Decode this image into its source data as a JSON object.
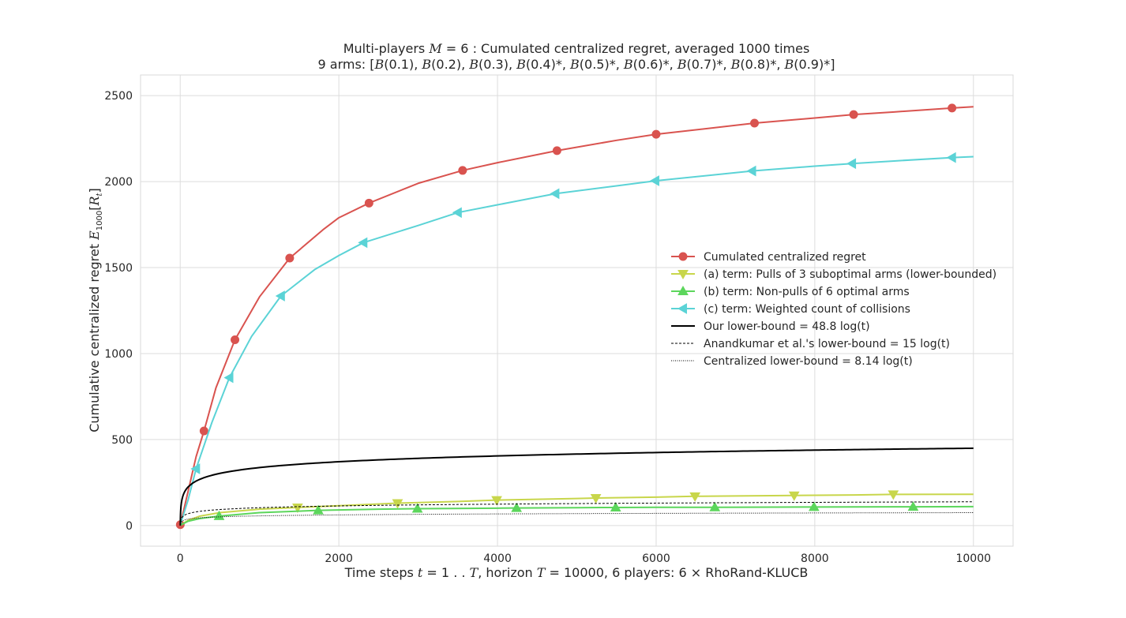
{
  "chart_data": {
    "type": "line",
    "title": "Multi-players M = 6 : Cumulated centralized regret, averaged 1000 times",
    "subtitle": "9 arms: [B(0.1), B(0.2), B(0.3), B(0.4)*, B(0.5)*, B(0.6)*, B(0.7)*, B(0.8)*, B(0.9)*]",
    "xlabel": "Time steps t = 1 . . T, horizon T = 10000, 6 players: 6 × RhoRand-KLUCB",
    "ylabel": "Cumulative centralized regret E1000[Rt]",
    "xlim": [
      -500,
      10500
    ],
    "ylim": [
      -120,
      2620
    ],
    "xticks": [
      0,
      2000,
      4000,
      6000,
      8000,
      10000
    ],
    "xtick_labels": [
      "0",
      "2000",
      "4000",
      "6000",
      "8000",
      "10000"
    ],
    "yticks": [
      0,
      500,
      1000,
      1500,
      2000,
      2500
    ],
    "ytick_labels": [
      "0",
      "500",
      "1000",
      "1500",
      "2000",
      "2500"
    ],
    "grid": true,
    "legend_position": "center-right",
    "series": [
      {
        "name": "Cumulated centralized regret",
        "color": "#d9534f",
        "style": "solid",
        "marker": "circle",
        "points": [
          [
            1,
            5
          ],
          [
            100,
            200
          ],
          [
            200,
            400
          ],
          [
            300,
            550
          ],
          [
            450,
            800
          ],
          [
            690,
            1080
          ],
          [
            1000,
            1330
          ],
          [
            1380,
            1555
          ],
          [
            1800,
            1720
          ],
          [
            2000,
            1790
          ],
          [
            2380,
            1875
          ],
          [
            3000,
            1990
          ],
          [
            3560,
            2065
          ],
          [
            4000,
            2110
          ],
          [
            4750,
            2180
          ],
          [
            5500,
            2240
          ],
          [
            6000,
            2275
          ],
          [
            7240,
            2340
          ],
          [
            8000,
            2370
          ],
          [
            8490,
            2390
          ],
          [
            9000,
            2405
          ],
          [
            9730,
            2428
          ],
          [
            10000,
            2435
          ]
        ],
        "marker_points": [
          [
            1,
            5
          ],
          [
            300,
            550
          ],
          [
            690,
            1080
          ],
          [
            1380,
            1555
          ],
          [
            2380,
            1875
          ],
          [
            3560,
            2065
          ],
          [
            4750,
            2180
          ],
          [
            6000,
            2275
          ],
          [
            7240,
            2340
          ],
          [
            8490,
            2390
          ],
          [
            9730,
            2428
          ]
        ]
      },
      {
        "name": "(a) term: Pulls of 3 suboptimal arms (lower-bounded)",
        "color": "#c8d64b",
        "style": "solid",
        "marker": "triangle-down",
        "points": [
          [
            1,
            2
          ],
          [
            100,
            30
          ],
          [
            250,
            55
          ],
          [
            500,
            75
          ],
          [
            1000,
            95
          ],
          [
            1480,
            105
          ],
          [
            2000,
            115
          ],
          [
            2740,
            130
          ],
          [
            3500,
            140
          ],
          [
            3990,
            148
          ],
          [
            5000,
            157
          ],
          [
            5240,
            160
          ],
          [
            6000,
            165
          ],
          [
            6490,
            170
          ],
          [
            7000,
            172
          ],
          [
            7740,
            175
          ],
          [
            8500,
            178
          ],
          [
            8990,
            181
          ],
          [
            10000,
            182
          ]
        ],
        "marker_points": [
          [
            1480,
            105
          ],
          [
            2740,
            130
          ],
          [
            3990,
            148
          ],
          [
            5240,
            160
          ],
          [
            6490,
            170
          ],
          [
            7740,
            175
          ],
          [
            8990,
            181
          ]
        ]
      },
      {
        "name": "(b) term: Non-pulls of 6 optimal arms",
        "color": "#5cd65c",
        "style": "solid",
        "marker": "triangle-up",
        "points": [
          [
            1,
            2
          ],
          [
            100,
            25
          ],
          [
            240,
            40
          ],
          [
            490,
            55
          ],
          [
            1000,
            75
          ],
          [
            1740,
            88
          ],
          [
            2500,
            95
          ],
          [
            2990,
            98
          ],
          [
            4000,
            101
          ],
          [
            4240,
            102
          ],
          [
            5000,
            104
          ],
          [
            5490,
            105
          ],
          [
            6000,
            106
          ],
          [
            6740,
            106
          ],
          [
            7500,
            107
          ],
          [
            7990,
            108
          ],
          [
            9000,
            109
          ],
          [
            9240,
            109
          ],
          [
            10000,
            110
          ]
        ],
        "marker_points": [
          [
            490,
            55
          ],
          [
            1740,
            88
          ],
          [
            2990,
            98
          ],
          [
            4240,
            102
          ],
          [
            5490,
            105
          ],
          [
            6740,
            106
          ],
          [
            7990,
            108
          ],
          [
            9240,
            109
          ]
        ]
      },
      {
        "name": "(c) term: Weighted count of collisions",
        "color": "#5bd3d6",
        "style": "solid",
        "marker": "triangle-left",
        "points": [
          [
            1,
            5
          ],
          [
            100,
            150
          ],
          [
            200,
            330
          ],
          [
            400,
            600
          ],
          [
            620,
            860
          ],
          [
            900,
            1100
          ],
          [
            1270,
            1335
          ],
          [
            1700,
            1490
          ],
          [
            2000,
            1570
          ],
          [
            2310,
            1645
          ],
          [
            3000,
            1745
          ],
          [
            3500,
            1820
          ],
          [
            4000,
            1865
          ],
          [
            4730,
            1930
          ],
          [
            5500,
            1975
          ],
          [
            6000,
            2005
          ],
          [
            7210,
            2062
          ],
          [
            8000,
            2090
          ],
          [
            8470,
            2105
          ],
          [
            9000,
            2120
          ],
          [
            9740,
            2140
          ],
          [
            10000,
            2145
          ]
        ],
        "marker_points": [
          [
            200,
            330
          ],
          [
            620,
            860
          ],
          [
            1270,
            1335
          ],
          [
            2310,
            1645
          ],
          [
            3500,
            1820
          ],
          [
            4730,
            1930
          ],
          [
            5990,
            2005
          ],
          [
            7210,
            2062
          ],
          [
            8470,
            2105
          ],
          [
            9730,
            2140
          ]
        ]
      },
      {
        "name": "Our lower-bound = 48.8 log(t)",
        "color": "#000000",
        "style": "solid",
        "coef": 48.8
      },
      {
        "name": "Anandkumar et al.'s lower-bound = 15 log(t)",
        "color": "#000000",
        "style": "dashed",
        "coef": 15
      },
      {
        "name": "Centralized lower-bound = 8.14 log(t)",
        "color": "#000000",
        "style": "dotted",
        "coef": 8.14
      }
    ]
  }
}
